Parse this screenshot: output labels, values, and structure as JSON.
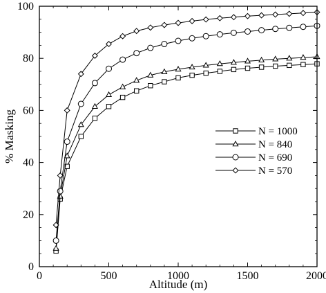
{
  "chart_data": {
    "type": "line",
    "title": "",
    "xlabel": "Altitude (m)",
    "ylabel": "% Masking",
    "xlim": [
      0,
      2000
    ],
    "ylim": [
      0,
      100
    ],
    "xticks": [
      0,
      500,
      1000,
      1500,
      2000
    ],
    "yticks": [
      0,
      20,
      40,
      60,
      80,
      100
    ],
    "grid": false,
    "legend": "center-right",
    "series": [
      {
        "name": "N = 1000",
        "marker": "square",
        "x": [
          120,
          150,
          200,
          300,
          400,
          500,
          600,
          700,
          800,
          900,
          1000,
          1100,
          1200,
          1300,
          1400,
          1500,
          1600,
          1700,
          1800,
          1900,
          2000
        ],
        "y": [
          6,
          26,
          38.5,
          50,
          57,
          61.5,
          65,
          67.5,
          69.5,
          71,
          72.5,
          73.5,
          74.3,
          75,
          75.7,
          76.2,
          76.6,
          77,
          77.3,
          77.6,
          77.9
        ]
      },
      {
        "name": "N = 840",
        "marker": "triangle",
        "x": [
          120,
          150,
          200,
          300,
          400,
          500,
          600,
          700,
          800,
          900,
          1000,
          1100,
          1200,
          1300,
          1400,
          1500,
          1600,
          1700,
          1800,
          1900,
          2000
        ],
        "y": [
          7,
          27,
          42.5,
          54.5,
          61.5,
          66,
          69,
          71.5,
          73.5,
          74.8,
          75.8,
          76.6,
          77.3,
          77.9,
          78.4,
          78.9,
          79.3,
          79.7,
          80,
          80.3,
          80.6
        ]
      },
      {
        "name": "N = 690",
        "marker": "circle",
        "x": [
          120,
          150,
          200,
          300,
          400,
          500,
          600,
          700,
          800,
          900,
          1000,
          1100,
          1200,
          1300,
          1400,
          1500,
          1600,
          1700,
          1800,
          1900,
          2000
        ],
        "y": [
          10,
          29,
          48,
          62.5,
          70.5,
          76,
          79.5,
          82,
          84,
          85.5,
          86.7,
          87.7,
          88.5,
          89.2,
          89.8,
          90.3,
          90.8,
          91.3,
          91.7,
          92.1,
          92.5
        ]
      },
      {
        "name": "N = 570",
        "marker": "diamond",
        "x": [
          120,
          150,
          200,
          300,
          400,
          500,
          600,
          700,
          800,
          900,
          1000,
          1100,
          1200,
          1300,
          1400,
          1500,
          1600,
          1700,
          1800,
          1900,
          2000
        ],
        "y": [
          16,
          35,
          60,
          74,
          81,
          85.5,
          88.5,
          90.5,
          91.8,
          92.8,
          93.6,
          94.3,
          94.9,
          95.4,
          95.8,
          96.2,
          96.5,
          96.8,
          97.1,
          97.4,
          97.7
        ]
      }
    ]
  }
}
